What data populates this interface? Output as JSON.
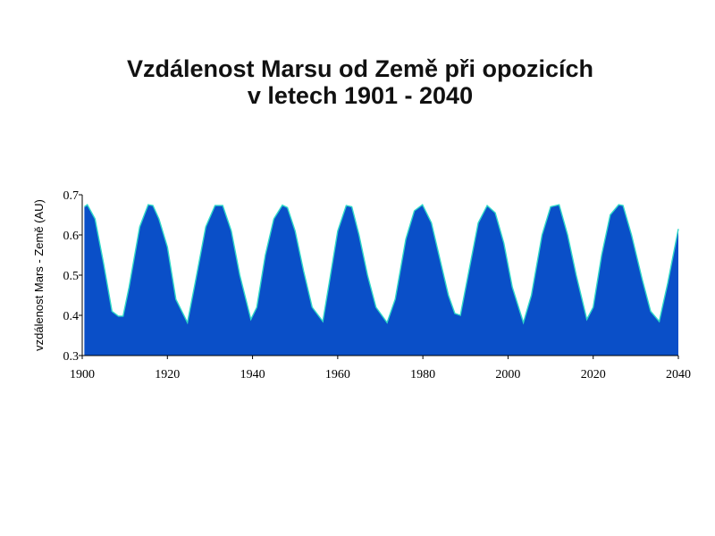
{
  "chart_data": {
    "type": "area",
    "title": [
      "Vzdálenost Marsu od Země při opozicích",
      "v letech 1901 - 2040"
    ],
    "xlabel": "",
    "ylabel": "vzdálenost Mars - Země (AU)",
    "xlim": [
      1900,
      2040
    ],
    "ylim": [
      0.3,
      0.7
    ],
    "x_ticks": [
      1900,
      1920,
      1940,
      1960,
      1980,
      2000,
      2020,
      2040
    ],
    "y_ticks": [
      0.3,
      0.4,
      0.5,
      0.6,
      0.7
    ],
    "y_tick_labels": [
      "0.3",
      "0.4",
      "0.5",
      "0.6",
      "0.7"
    ],
    "grid": false,
    "colors": {
      "fill": "#0a4fc8",
      "outline": "#2fd8c8"
    },
    "series": [
      {
        "x": [
          1900.5,
          1901.2,
          1903.0,
          1905.0,
          1907.0,
          1908.5,
          1909.6,
          1911.0,
          1913.5,
          1915.5,
          1916.6,
          1918.0,
          1920.0,
          1922.0,
          1924.7,
          1926.5,
          1929.0,
          1931.2,
          1933.0,
          1935.0,
          1937.0,
          1939.6,
          1941.0,
          1943.0,
          1945.0,
          1947.0,
          1948.2,
          1950.0,
          1952.0,
          1954.0,
          1956.5,
          1958.0,
          1960.0,
          1962.0,
          1963.3,
          1965.0,
          1967.0,
          1969.0,
          1971.6,
          1973.5,
          1976.0,
          1978.0,
          1979.9,
          1982.0,
          1984.0,
          1986.0,
          1987.5,
          1988.8,
          1991.0,
          1993.0,
          1995.1,
          1997.0,
          1999.0,
          2001.0,
          2003.6,
          2005.5,
          2008.0,
          2010.0,
          2012.0,
          2014.0,
          2016.0,
          2018.5,
          2020.0,
          2022.0,
          2024.0,
          2026.0,
          2027.0,
          2029.0,
          2031.5,
          2033.5,
          2035.5,
          2037.5,
          2040.0
        ],
        "y": [
          0.67,
          0.675,
          0.64,
          0.53,
          0.41,
          0.398,
          0.398,
          0.47,
          0.62,
          0.675,
          0.673,
          0.64,
          0.57,
          0.44,
          0.382,
          0.48,
          0.62,
          0.673,
          0.673,
          0.61,
          0.5,
          0.39,
          0.42,
          0.55,
          0.64,
          0.674,
          0.668,
          0.61,
          0.51,
          0.42,
          0.385,
          0.48,
          0.61,
          0.673,
          0.67,
          0.6,
          0.5,
          0.42,
          0.382,
          0.44,
          0.59,
          0.66,
          0.675,
          0.63,
          0.54,
          0.45,
          0.405,
          0.4,
          0.52,
          0.63,
          0.673,
          0.655,
          0.58,
          0.47,
          0.382,
          0.45,
          0.6,
          0.67,
          0.675,
          0.6,
          0.5,
          0.39,
          0.42,
          0.55,
          0.65,
          0.675,
          0.673,
          0.6,
          0.49,
          0.41,
          0.385,
          0.48,
          0.615
        ]
      }
    ]
  }
}
